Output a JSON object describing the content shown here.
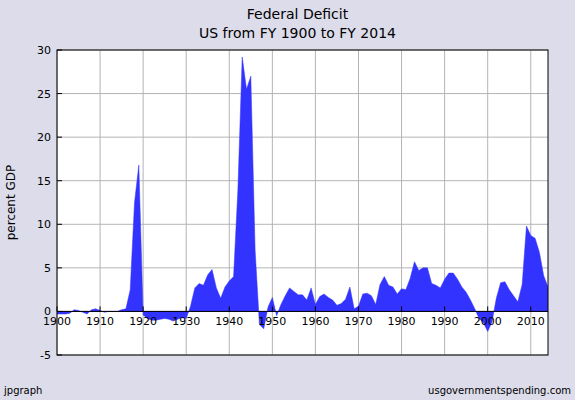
{
  "chart_data": {
    "type": "area",
    "title": "Federal Deficit",
    "subtitle": "US from FY 1900 to FY 2014",
    "y_label": "percent GDP",
    "annotations": [
      "jpgraph",
      "usgovernmentspending.com"
    ],
    "color": "#3333ff",
    "grid": true,
    "xlim": [
      1900,
      2014
    ],
    "xticks": [
      1900,
      1910,
      1920,
      1930,
      1940,
      1950,
      1960,
      1970,
      1980,
      1990,
      2000,
      2010
    ],
    "ylim": [
      -5,
      30
    ],
    "yticks": [
      -5,
      0,
      5,
      10,
      15,
      20,
      25,
      30
    ],
    "x": [
      1900,
      1901,
      1902,
      1903,
      1904,
      1905,
      1906,
      1907,
      1908,
      1909,
      1910,
      1911,
      1912,
      1913,
      1914,
      1915,
      1916,
      1917,
      1918,
      1919,
      1920,
      1921,
      1922,
      1923,
      1924,
      1925,
      1926,
      1927,
      1928,
      1929,
      1930,
      1931,
      1932,
      1933,
      1934,
      1935,
      1936,
      1937,
      1938,
      1939,
      1940,
      1941,
      1942,
      1943,
      1944,
      1945,
      1946,
      1947,
      1948,
      1949,
      1950,
      1951,
      1952,
      1953,
      1954,
      1955,
      1956,
      1957,
      1958,
      1959,
      1960,
      1961,
      1962,
      1963,
      1964,
      1965,
      1966,
      1967,
      1968,
      1969,
      1970,
      1971,
      1972,
      1973,
      1974,
      1975,
      1976,
      1977,
      1978,
      1979,
      1980,
      1981,
      1982,
      1983,
      1984,
      1985,
      1986,
      1987,
      1988,
      1989,
      1990,
      1991,
      1992,
      1993,
      1994,
      1995,
      1996,
      1997,
      1998,
      1999,
      2000,
      2001,
      2002,
      2003,
      2004,
      2005,
      2006,
      2007,
      2008,
      2009,
      2010,
      2011,
      2012,
      2013,
      2014
    ],
    "values": [
      -0.3,
      -0.3,
      -0.3,
      -0.2,
      0.2,
      0.1,
      -0.1,
      -0.3,
      0.2,
      0.3,
      0.1,
      -0.1,
      0,
      0,
      0,
      0.2,
      0.3,
      2.5,
      12.5,
      16.8,
      -0.4,
      -0.8,
      -1.0,
      -1.0,
      -0.9,
      -0.8,
      -0.9,
      -1.1,
      -0.9,
      -0.7,
      -0.8,
      0.6,
      2.7,
      3.2,
      3.0,
      4.2,
      4.8,
      2.7,
      1.5,
      2.8,
      3.5,
      4.0,
      14.0,
      29.2,
      25.5,
      27.0,
      7.0,
      -1.5,
      -2.0,
      0.5,
      1.6,
      -0.5,
      0.8,
      1.8,
      2.7,
      2.3,
      1.9,
      1.9,
      1.3,
      2.7,
      0.8,
      1.7,
      2.0,
      1.6,
      1.3,
      0.7,
      0.9,
      1.4,
      2.8,
      0.3,
      0.6,
      2.0,
      2.1,
      1.8,
      0.8,
      3.1,
      4.0,
      3.0,
      2.8,
      2.0,
      2.6,
      2.5,
      3.8,
      5.7,
      4.7,
      5.0,
      5.0,
      3.2,
      3.0,
      2.7,
      3.7,
      4.4,
      4.4,
      3.7,
      2.8,
      2.2,
      1.3,
      0.3,
      -0.8,
      -1.3,
      -2.3,
      -1.2,
      1.5,
      3.3,
      3.4,
      2.5,
      1.8,
      1.1,
      3.1,
      9.8,
      8.7,
      8.4,
      6.8,
      4.1,
      2.8
    ]
  }
}
